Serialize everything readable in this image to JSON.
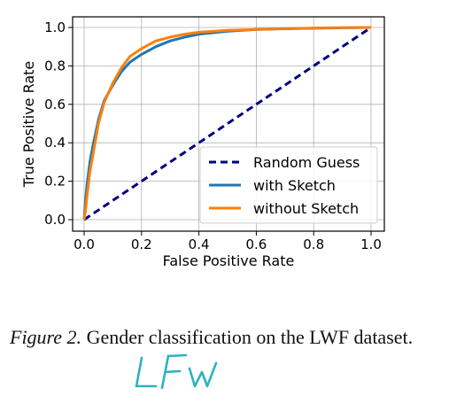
{
  "chart_data": {
    "type": "line",
    "title": "",
    "xlabel": "False Positive Rate",
    "ylabel": "True Positive Rate",
    "xlim": [
      0.0,
      1.0
    ],
    "ylim": [
      0.0,
      1.0
    ],
    "xticks": [
      "0.0",
      "0.2",
      "0.4",
      "0.6",
      "0.8",
      "1.0"
    ],
    "yticks": [
      "0.0",
      "0.2",
      "0.4",
      "0.6",
      "0.8",
      "1.0"
    ],
    "grid": true,
    "legend": "lower-right",
    "series": [
      {
        "name": "Random Guess",
        "color": "#000080",
        "style": "dashed",
        "x": [
          0.0,
          1.0
        ],
        "y": [
          0.0,
          1.0
        ]
      },
      {
        "name": "with Sketch",
        "color": "#1f77b4",
        "style": "solid",
        "x": [
          0.0,
          0.005,
          0.01,
          0.02,
          0.03,
          0.05,
          0.07,
          0.1,
          0.13,
          0.16,
          0.2,
          0.25,
          0.3,
          0.35,
          0.4,
          0.5,
          0.6,
          0.7,
          0.8,
          0.9,
          1.0
        ],
        "y": [
          0.0,
          0.1,
          0.18,
          0.3,
          0.38,
          0.52,
          0.62,
          0.7,
          0.77,
          0.82,
          0.86,
          0.9,
          0.93,
          0.95,
          0.965,
          0.98,
          0.99,
          0.993,
          0.996,
          0.998,
          1.0
        ]
      },
      {
        "name": "without Sketch",
        "color": "#ff7f0e",
        "style": "solid",
        "x": [
          0.0,
          0.005,
          0.01,
          0.02,
          0.03,
          0.05,
          0.07,
          0.1,
          0.13,
          0.16,
          0.2,
          0.25,
          0.3,
          0.35,
          0.4,
          0.5,
          0.6,
          0.7,
          0.8,
          0.9,
          1.0
        ],
        "y": [
          0.0,
          0.05,
          0.12,
          0.25,
          0.33,
          0.5,
          0.61,
          0.71,
          0.79,
          0.85,
          0.89,
          0.93,
          0.95,
          0.965,
          0.975,
          0.985,
          0.99,
          0.994,
          0.997,
          0.999,
          1.0
        ]
      }
    ]
  },
  "caption": {
    "label": "Figure 2.",
    "text": " Gender classification on the LWF dataset."
  },
  "annotation": {
    "handwritten_text": "LFW",
    "color": "#2bb3c0"
  }
}
